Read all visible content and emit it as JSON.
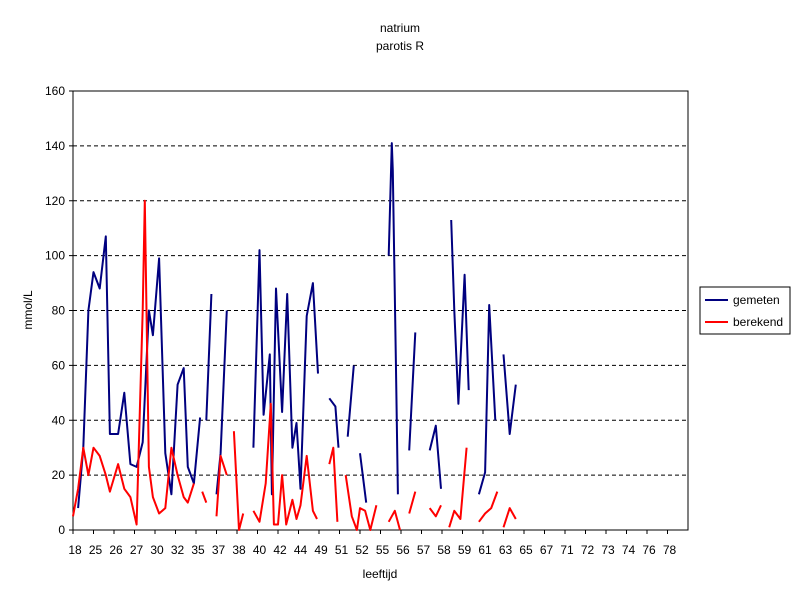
{
  "chart_data": {
    "type": "line",
    "title": "natrium",
    "subtitle": "parotis R",
    "xlabel": "leeftijd",
    "ylabel": "mmol/L",
    "ylim": [
      0,
      160
    ],
    "yticks": [
      0,
      20,
      40,
      60,
      80,
      100,
      120,
      140,
      160
    ],
    "grid": "horizontal dashed",
    "legend_position": "right",
    "categories": [
      "18",
      "25",
      "26",
      "27",
      "30",
      "32",
      "35",
      "37",
      "38",
      "40",
      "42",
      "44",
      "49",
      "51",
      "52",
      "55",
      "56",
      "57",
      "58",
      "59",
      "61",
      "63",
      "65",
      "67",
      "71",
      "72",
      "73",
      "74",
      "76",
      "78"
    ],
    "series": [
      {
        "name": "gemeten",
        "color": "#00007f",
        "points": [
          [
            0.0,
            null
          ],
          [
            0.25,
            8
          ],
          [
            0.5,
            30
          ],
          [
            0.75,
            80
          ],
          [
            1.0,
            94
          ],
          [
            1.3,
            88
          ],
          [
            1.6,
            107
          ],
          [
            1.8,
            35
          ],
          [
            2.2,
            35
          ],
          [
            2.5,
            50
          ],
          [
            2.8,
            24
          ],
          [
            3.1,
            23
          ],
          [
            3.4,
            32
          ],
          [
            3.7,
            80
          ],
          [
            3.9,
            71
          ],
          [
            4.2,
            99
          ],
          [
            4.5,
            28
          ],
          [
            4.8,
            13
          ],
          [
            5.1,
            53
          ],
          [
            5.4,
            59
          ],
          [
            5.6,
            23
          ],
          [
            5.9,
            17
          ],
          [
            6.2,
            41
          ],
          [
            6.3,
            null
          ],
          [
            6.5,
            40
          ],
          [
            6.75,
            86
          ],
          [
            6.85,
            null
          ],
          [
            7.0,
            13
          ],
          [
            7.2,
            28
          ],
          [
            7.5,
            80
          ],
          [
            7.6,
            null
          ],
          [
            8.8,
            30
          ],
          [
            9.1,
            102
          ],
          [
            9.3,
            42
          ],
          [
            9.6,
            64
          ],
          [
            9.7,
            13
          ],
          [
            9.9,
            88
          ],
          [
            10.2,
            43
          ],
          [
            10.45,
            86
          ],
          [
            10.7,
            30
          ],
          [
            10.9,
            39
          ],
          [
            11.1,
            15
          ],
          [
            11.4,
            78
          ],
          [
            11.7,
            90
          ],
          [
            11.95,
            57
          ],
          [
            12.0,
            null
          ],
          [
            12.5,
            48
          ],
          [
            12.8,
            45
          ],
          [
            12.95,
            30
          ],
          [
            13.0,
            null
          ],
          [
            13.4,
            34
          ],
          [
            13.7,
            60
          ],
          [
            13.8,
            null
          ],
          [
            14.0,
            28
          ],
          [
            14.3,
            10
          ],
          [
            14.4,
            null
          ],
          [
            15.0,
            0
          ],
          [
            15.25,
            null
          ],
          [
            15.4,
            100
          ],
          [
            15.55,
            141
          ],
          [
            15.6,
            131
          ],
          [
            15.75,
            61
          ],
          [
            15.85,
            13
          ],
          [
            15.9,
            null
          ],
          [
            16.4,
            29
          ],
          [
            16.7,
            72
          ],
          [
            16.8,
            null
          ],
          [
            17.4,
            29
          ],
          [
            17.7,
            38
          ],
          [
            17.95,
            15
          ],
          [
            18.0,
            null
          ],
          [
            18.45,
            113
          ],
          [
            18.6,
            80
          ],
          [
            18.8,
            46
          ],
          [
            19.1,
            93
          ],
          [
            19.3,
            51
          ],
          [
            19.4,
            null
          ],
          [
            19.8,
            13
          ],
          [
            20.1,
            21
          ],
          [
            20.3,
            82
          ],
          [
            20.6,
            40
          ],
          [
            20.8,
            null
          ],
          [
            21.0,
            64
          ],
          [
            21.3,
            35
          ],
          [
            21.6,
            53
          ]
        ]
      },
      {
        "name": "berekend",
        "color": "#ff0000",
        "points": [
          [
            0.0,
            5
          ],
          [
            0.25,
            15
          ],
          [
            0.5,
            30
          ],
          [
            0.75,
            20
          ],
          [
            1.0,
            30
          ],
          [
            1.3,
            27
          ],
          [
            1.6,
            20
          ],
          [
            1.8,
            14
          ],
          [
            2.2,
            24
          ],
          [
            2.5,
            15
          ],
          [
            2.8,
            12
          ],
          [
            3.1,
            2
          ],
          [
            3.4,
            80
          ],
          [
            3.5,
            120
          ],
          [
            3.7,
            23
          ],
          [
            3.9,
            12
          ],
          [
            4.2,
            6
          ],
          [
            4.5,
            8
          ],
          [
            4.8,
            30
          ],
          [
            5.1,
            20
          ],
          [
            5.4,
            12
          ],
          [
            5.6,
            10
          ],
          [
            5.9,
            17
          ],
          [
            6.0,
            null
          ],
          [
            6.3,
            14
          ],
          [
            6.5,
            10
          ],
          [
            6.6,
            null
          ],
          [
            7.0,
            5
          ],
          [
            7.2,
            27
          ],
          [
            7.5,
            20
          ],
          [
            7.6,
            null
          ],
          [
            7.85,
            36
          ],
          [
            8.1,
            0
          ],
          [
            8.3,
            6
          ],
          [
            8.4,
            null
          ],
          [
            8.8,
            7
          ],
          [
            9.1,
            3
          ],
          [
            9.4,
            17
          ],
          [
            9.65,
            46
          ],
          [
            9.8,
            2
          ],
          [
            10.0,
            2
          ],
          [
            10.2,
            20
          ],
          [
            10.4,
            2
          ],
          [
            10.7,
            11
          ],
          [
            10.9,
            4
          ],
          [
            11.1,
            9
          ],
          [
            11.4,
            27
          ],
          [
            11.7,
            7
          ],
          [
            11.9,
            4
          ],
          [
            12.0,
            null
          ],
          [
            12.5,
            24
          ],
          [
            12.7,
            30
          ],
          [
            12.9,
            3
          ],
          [
            13.0,
            null
          ],
          [
            13.3,
            20
          ],
          [
            13.6,
            5
          ],
          [
            13.85,
            0
          ],
          [
            14.0,
            8
          ],
          [
            14.25,
            7
          ],
          [
            14.5,
            0
          ],
          [
            14.8,
            9
          ],
          [
            14.9,
            null
          ],
          [
            15.4,
            3
          ],
          [
            15.7,
            7
          ],
          [
            15.95,
            0
          ],
          [
            16.0,
            null
          ],
          [
            16.4,
            6
          ],
          [
            16.7,
            14
          ],
          [
            16.8,
            null
          ],
          [
            17.4,
            8
          ],
          [
            17.7,
            5
          ],
          [
            17.95,
            9
          ],
          [
            18.0,
            null
          ],
          [
            18.35,
            1
          ],
          [
            18.6,
            7
          ],
          [
            18.9,
            4
          ],
          [
            19.2,
            30
          ],
          [
            19.3,
            null
          ],
          [
            19.8,
            3
          ],
          [
            20.1,
            6
          ],
          [
            20.4,
            8
          ],
          [
            20.7,
            14
          ],
          [
            20.8,
            null
          ],
          [
            21.0,
            1
          ],
          [
            21.3,
            8
          ],
          [
            21.6,
            4
          ]
        ]
      }
    ]
  }
}
